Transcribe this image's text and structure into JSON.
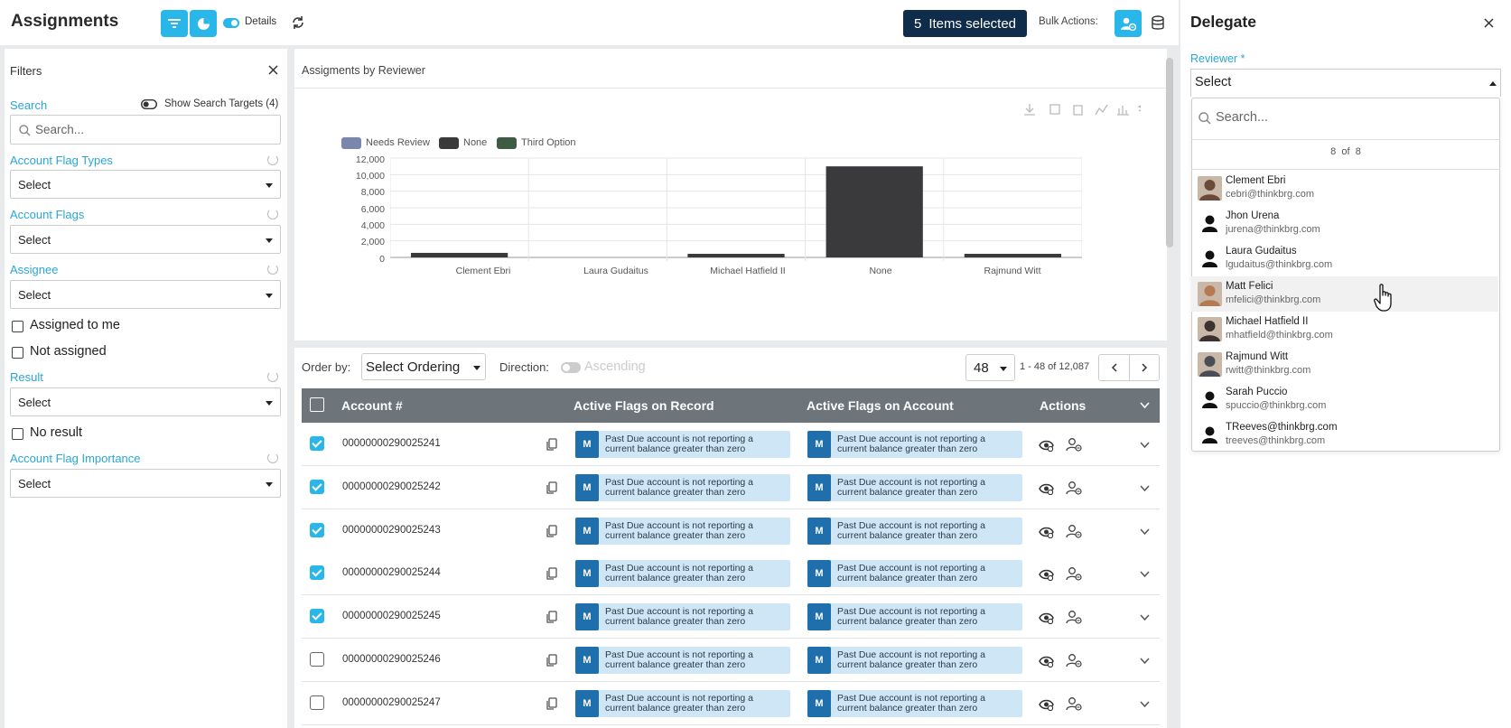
{
  "header": {
    "title": "Assignments",
    "details_label": "Details",
    "selected_count": "5",
    "selected_label": "Items selected",
    "bulk_actions_label": "Bulk Actions:"
  },
  "filters": {
    "title": "Filters",
    "search_label": "Search",
    "show_targets_label": "Show Search Targets (4)",
    "search_placeholder": "Search...",
    "account_flag_types_label": "Account Flag Types",
    "account_flag_types_value": "Select",
    "account_flags_label": "Account Flags",
    "account_flags_value": "Select",
    "assignee_label": "Assignee",
    "assignee_value": "Select",
    "assigned_to_me_label": "Assigned to me",
    "not_assigned_label": "Not assigned",
    "result_label": "Result",
    "result_value": "Select",
    "no_result_label": "No result",
    "importance_label": "Account Flag Importance",
    "importance_value": "Select"
  },
  "chart_panel": {
    "title": "Assigments by Reviewer"
  },
  "chart_data": {
    "type": "bar",
    "title": "",
    "categories": [
      "Clement Ebri",
      "Laura Gudaitus",
      "Michael Hatfield II",
      "None",
      "Rajmund Witt"
    ],
    "series": [
      {
        "name": "Needs Review",
        "color": "#7b86ad",
        "values": [
          0,
          0,
          0,
          0,
          0
        ]
      },
      {
        "name": "None",
        "color": "#3a3a3c",
        "values": [
          550,
          0,
          300,
          11000,
          350
        ]
      },
      {
        "name": "Third Option",
        "color": "#3e5b43",
        "values": [
          0,
          0,
          0,
          0,
          0
        ]
      }
    ],
    "y_ticks": [
      "12,000",
      "10,000",
      "8,000",
      "6,000",
      "4,000",
      "2,000",
      "0"
    ],
    "ylim": [
      0,
      12000
    ],
    "legend_position": "top-left",
    "grid": true
  },
  "table": {
    "order_by_label": "Order by:",
    "order_by_value": "Select Ordering",
    "direction_label": "Direction:",
    "direction_value": "Ascending",
    "page_size": "48",
    "page_range": "1 - 48 of 12,087",
    "columns": [
      "Account #",
      "Active Flags on Record",
      "Active Flags on Account",
      "Actions"
    ],
    "flag_letter": "M",
    "flag_text": "Past Due account is not reporting a current balance greater than zero",
    "rows": [
      {
        "account": "00000000290025241",
        "checked": true
      },
      {
        "account": "00000000290025242",
        "checked": true
      },
      {
        "account": "00000000290025243",
        "checked": true
      },
      {
        "account": "00000000290025244",
        "checked": true
      },
      {
        "account": "00000000290025245",
        "checked": true
      },
      {
        "account": "00000000290025246",
        "checked": false
      },
      {
        "account": "00000000290025247",
        "checked": false
      }
    ]
  },
  "delegate": {
    "title": "Delegate",
    "reviewer_label": "Reviewer *",
    "reviewer_value": "Select",
    "search_placeholder": "Search...",
    "count_text": "8  of  8",
    "people": [
      {
        "name": "Clement Ebri",
        "email": "cebri@thinkbrg.com",
        "avatar": "photo"
      },
      {
        "name": "Jhon Urena",
        "email": "jurena@thinkbrg.com",
        "avatar": "silhouette"
      },
      {
        "name": "Laura Gudaitus",
        "email": "lgudaitus@thinkbrg.com",
        "avatar": "silhouette"
      },
      {
        "name": "Matt Felici",
        "email": "mfelici@thinkbrg.com",
        "avatar": "photo"
      },
      {
        "name": "Michael Hatfield II",
        "email": "mhatfield@thinkbrg.com",
        "avatar": "photo"
      },
      {
        "name": "Rajmund Witt",
        "email": "rwitt@thinkbrg.com",
        "avatar": "photo"
      },
      {
        "name": "Sarah Puccio",
        "email": "spuccio@thinkbrg.com",
        "avatar": "silhouette"
      },
      {
        "name": "TReeves@thinkbrg.com",
        "email": "treeves@thinkbrg.com",
        "avatar": "silhouette"
      }
    ]
  }
}
